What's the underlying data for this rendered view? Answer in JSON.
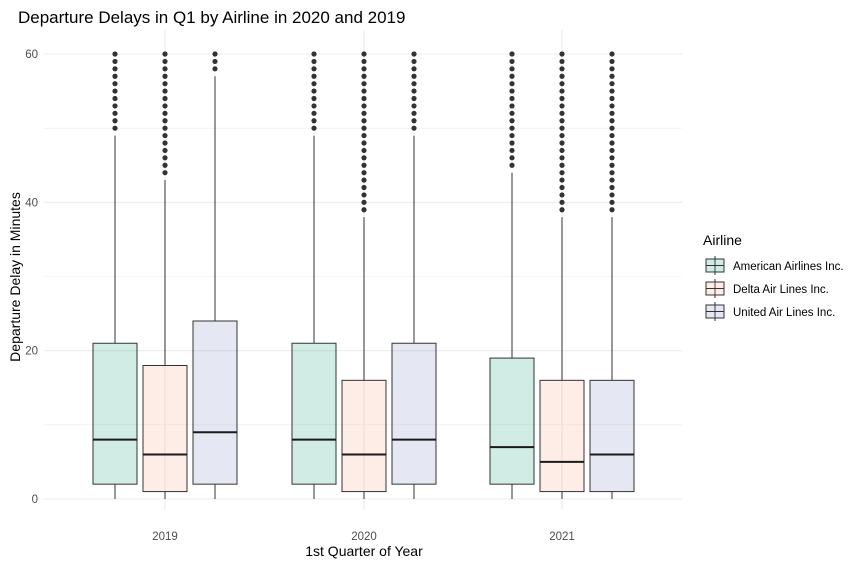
{
  "chart_data": {
    "type": "boxplot",
    "title": "Departure Delays in Q1 by Airline in 2020 and 2019",
    "xlabel": "1st Quarter of Year",
    "ylabel": "Departure Delay in Minutes",
    "categories": [
      "2019",
      "2020",
      "2021"
    ],
    "ylim": [
      -3,
      63
    ],
    "yticks": [
      0,
      20,
      40,
      60
    ],
    "grid": true,
    "legend": {
      "title": "Airline",
      "placement": "right"
    },
    "series": [
      {
        "name": "American Airlines Inc.",
        "color": "#1b9e77",
        "boxes": [
          {
            "whisker_low": 0,
            "q1": 2,
            "median": 8,
            "q3": 21,
            "whisker_high": 49,
            "outlier_min": 50,
            "outlier_max": 60
          },
          {
            "whisker_low": 0,
            "q1": 2,
            "median": 8,
            "q3": 21,
            "whisker_high": 49,
            "outlier_min": 50,
            "outlier_max": 60
          },
          {
            "whisker_low": 0,
            "q1": 2,
            "median": 7,
            "q3": 19,
            "whisker_high": 44,
            "outlier_min": 45,
            "outlier_max": 60
          }
        ]
      },
      {
        "name": "Delta Air Lines Inc.",
        "color": "#f4a582",
        "boxes": [
          {
            "whisker_low": 0,
            "q1": 1,
            "median": 6,
            "q3": 18,
            "whisker_high": 43,
            "outlier_min": 44,
            "outlier_max": 60
          },
          {
            "whisker_low": 0,
            "q1": 1,
            "median": 6,
            "q3": 16,
            "whisker_high": 38,
            "outlier_min": 39,
            "outlier_max": 60
          },
          {
            "whisker_low": 0,
            "q1": 1,
            "median": 5,
            "q3": 16,
            "whisker_high": 38,
            "outlier_min": 39,
            "outlier_max": 60
          }
        ]
      },
      {
        "name": "United Air Lines Inc.",
        "color": "#7b8cc4",
        "boxes": [
          {
            "whisker_low": 0,
            "q1": 2,
            "median": 9,
            "q3": 24,
            "whisker_high": 57,
            "outlier_min": 58,
            "outlier_max": 60
          },
          {
            "whisker_low": 0,
            "q1": 2,
            "median": 8,
            "q3": 21,
            "whisker_high": 49,
            "outlier_min": 50,
            "outlier_max": 60
          },
          {
            "whisker_low": 0,
            "q1": 1,
            "median": 6,
            "q3": 16,
            "whisker_high": 38,
            "outlier_min": 39,
            "outlier_max": 60
          }
        ]
      }
    ]
  }
}
